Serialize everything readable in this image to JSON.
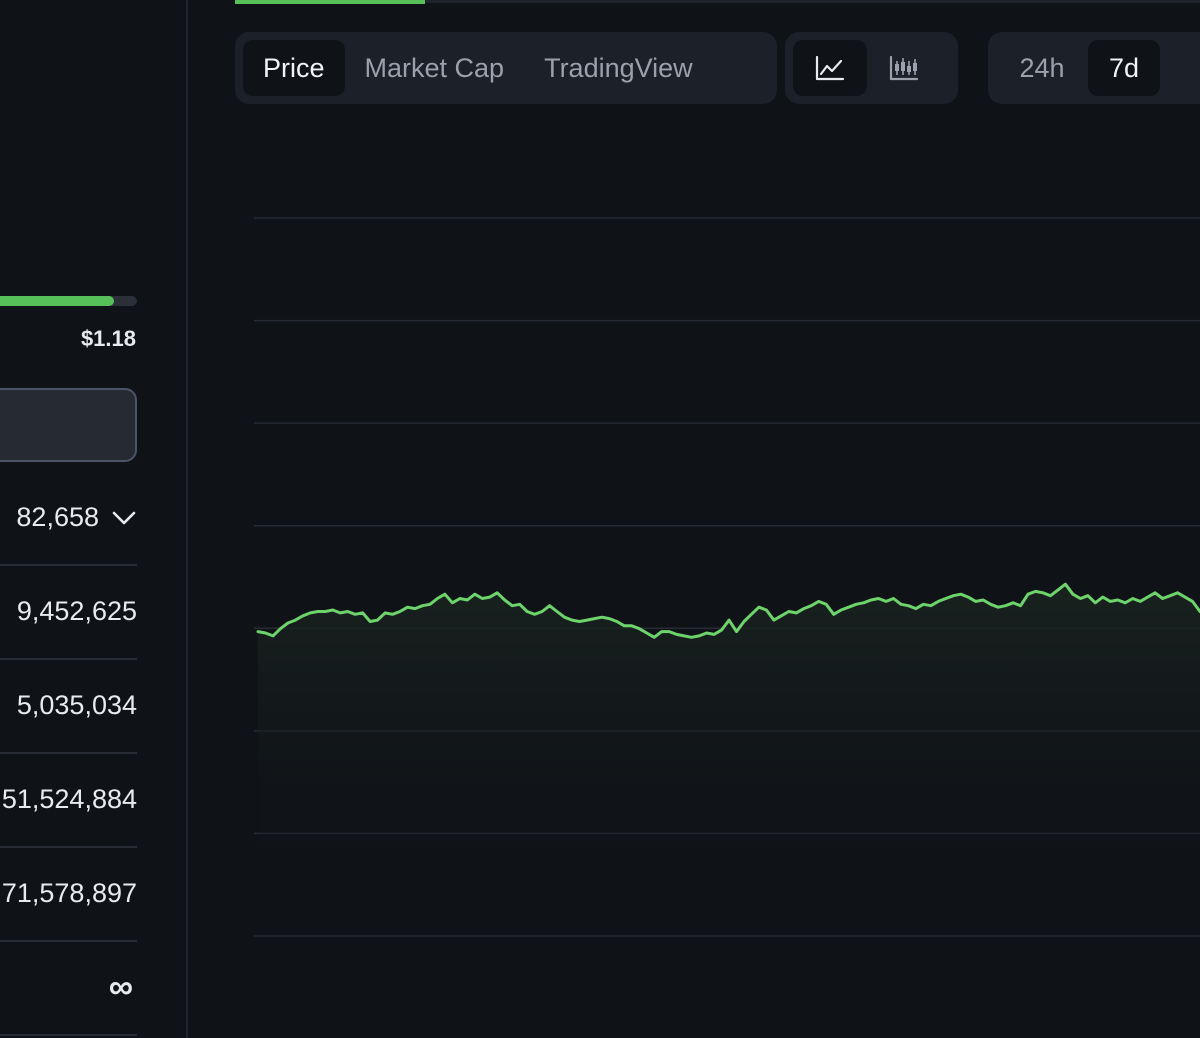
{
  "toolbar": {
    "chart_tabs": [
      "Price",
      "Market Cap",
      "TradingView"
    ],
    "active_chart_tab": "Price",
    "chart_style_icons": [
      "line-chart-icon",
      "candlestick-chart-icon"
    ],
    "time_ranges": [
      "24h",
      "7d"
    ],
    "active_time_range": "7d"
  },
  "stats": {
    "range_progress": 0.83,
    "range_high": "$1.18",
    "rows": [
      "82,658",
      "9,452,625",
      "5,035,034",
      "51,524,884",
      "71,578,897",
      "∞"
    ]
  },
  "colors": {
    "background": "#0f1217",
    "accent_green": "#57c058",
    "gridline": "#252a33",
    "panel": "#1c2028"
  },
  "chart_data": {
    "type": "line",
    "title": "",
    "xlabel": "",
    "ylabel": "",
    "grid": true,
    "ylim": [
      0,
      1
    ],
    "values": [
      0.424,
      0.422,
      0.418,
      0.428,
      0.436,
      0.44,
      0.446,
      0.45,
      0.452,
      0.452,
      0.454,
      0.45,
      0.452,
      0.448,
      0.45,
      0.438,
      0.44,
      0.45,
      0.448,
      0.452,
      0.458,
      0.456,
      0.46,
      0.462,
      0.47,
      0.476,
      0.464,
      0.47,
      0.468,
      0.476,
      0.47,
      0.472,
      0.478,
      0.468,
      0.46,
      0.462,
      0.452,
      0.448,
      0.452,
      0.46,
      0.452,
      0.444,
      0.44,
      0.438,
      0.44,
      0.442,
      0.444,
      0.442,
      0.438,
      0.432,
      0.432,
      0.428,
      0.422,
      0.416,
      0.424,
      0.424,
      0.42,
      0.418,
      0.416,
      0.418,
      0.422,
      0.42,
      0.426,
      0.44,
      0.424,
      0.438,
      0.448,
      0.458,
      0.454,
      0.44,
      0.446,
      0.452,
      0.45,
      0.456,
      0.46,
      0.466,
      0.462,
      0.448,
      0.454,
      0.458,
      0.462,
      0.464,
      0.468,
      0.47,
      0.466,
      0.47,
      0.462,
      0.46,
      0.456,
      0.462,
      0.46,
      0.466,
      0.47,
      0.474,
      0.476,
      0.472,
      0.466,
      0.468,
      0.462,
      0.458,
      0.46,
      0.464,
      0.46,
      0.476,
      0.48,
      0.478,
      0.474,
      0.482,
      0.49,
      0.476,
      0.47,
      0.474,
      0.464,
      0.472,
      0.466,
      0.468,
      0.464,
      0.47,
      0.466,
      0.472,
      0.478,
      0.47,
      0.474,
      0.478,
      0.472,
      0.466,
      0.452
    ]
  }
}
